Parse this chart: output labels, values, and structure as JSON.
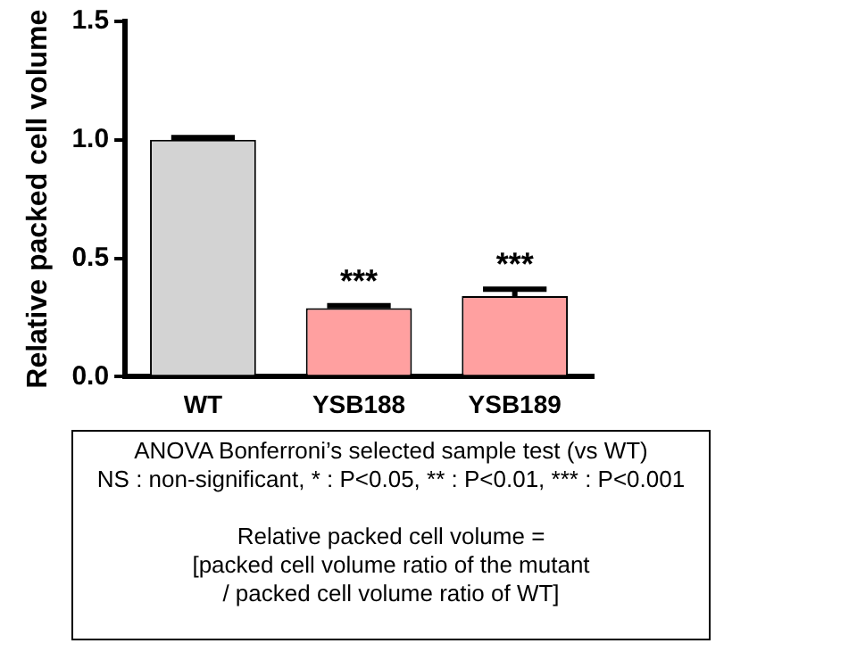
{
  "chart_data": {
    "type": "bar",
    "ylabel": "Relative packed cell volume",
    "categories": [
      "WT",
      "YSB188",
      "YSB189"
    ],
    "values": [
      1.0,
      0.29,
      0.34
    ],
    "errors": [
      0.01,
      0.01,
      0.03
    ],
    "colors": [
      "#d3d3d3",
      "#ffa0a0",
      "#ffa0a0"
    ],
    "ylim": [
      0,
      1.5
    ],
    "yticks": [
      {
        "value": 0,
        "label": "0.0"
      },
      {
        "value": 0.5,
        "label": "0.5"
      },
      {
        "value": 1,
        "label": "1.0"
      },
      {
        "value": 1.5,
        "label": "1.5"
      }
    ],
    "grid": false,
    "annotations": [
      {
        "text": "***",
        "x": "YSB188",
        "y": 0.3
      },
      {
        "text": "***",
        "x": "YSB189",
        "y": 0.37
      },
      "ANOVA Bonferroni’s selected sample test (vs WT)",
      "NS : non-significant, * : P<0.05, ** : P<0.01, *** : P<0.001",
      "Relative packed cell volume =",
      "[packed cell volume ratio of the mutant",
      "/ packed cell volume ratio of WT]"
    ]
  }
}
